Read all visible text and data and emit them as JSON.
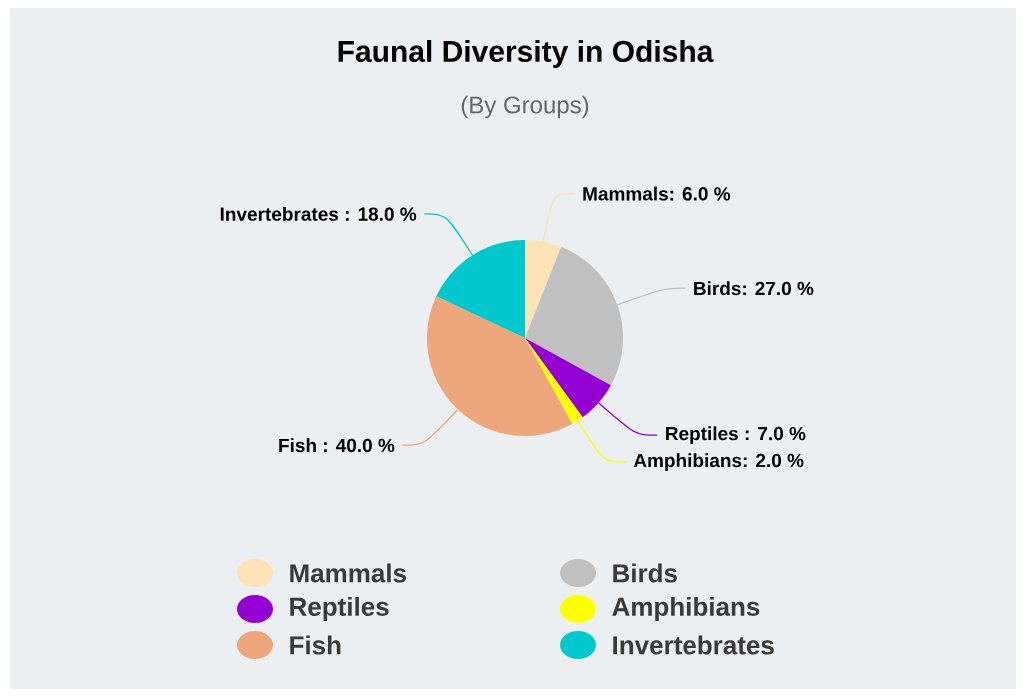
{
  "chart_data": {
    "type": "pie",
    "title": "Faunal Diversity in Odisha",
    "subtitle": "(By Groups)",
    "categories": [
      "Mammals",
      "Birds",
      "Reptiles",
      "Amphibians",
      "Fish",
      "Invertebrates"
    ],
    "values": [
      6.0,
      27.0,
      7.0,
      2.0,
      40.0,
      18.0
    ],
    "colors": [
      "#fde2b6",
      "#c0c0c0",
      "#9400d3",
      "#ffff00",
      "#eea67c",
      "#00c8cc"
    ],
    "value_labels": [
      "Mammals: 6.0 %",
      "Birds: 27.0 %",
      "Reptiles : 7.0 %",
      "Amphibians: 2.0 %",
      "Fish : 40.0 %",
      "Invertebrates : 18.0 %"
    ],
    "legend": "bottom"
  }
}
